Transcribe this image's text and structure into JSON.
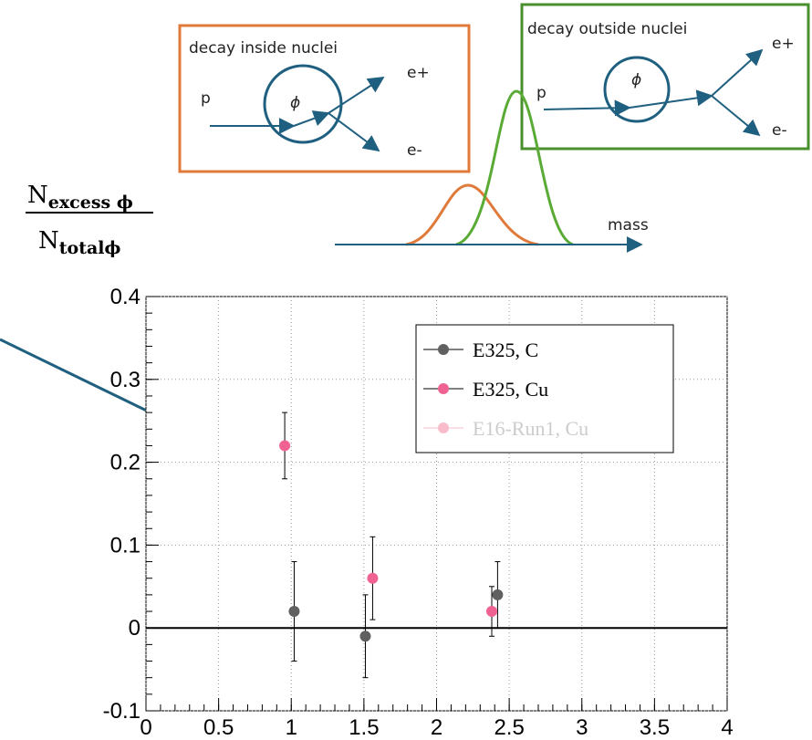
{
  "chart_data": {
    "type": "scatter",
    "xlim": [
      0,
      4
    ],
    "xticks": [
      0,
      0.5,
      1,
      1.5,
      2,
      2.5,
      3,
      3.5,
      4
    ],
    "ylim": [
      -0.1,
      0.4
    ],
    "yticks": [
      -0.1,
      0,
      0.1,
      0.2,
      0.3,
      0.4
    ],
    "grid": true,
    "legend": "upper right",
    "series": [
      {
        "name": "E325, C",
        "color": "#606060",
        "x": [
          1.02,
          1.51,
          2.42
        ],
        "values": [
          0.02,
          -0.01,
          0.04
        ],
        "errors": [
          0.06,
          0.05,
          0.04
        ]
      },
      {
        "name": "E325, Cu",
        "color": "#f06292",
        "x": [
          0.955,
          1.56,
          2.38
        ],
        "values": [
          0.22,
          0.06,
          0.02
        ],
        "errors": [
          0.04,
          0.05,
          0.03
        ]
      },
      {
        "name": "E16-Run1, Cu",
        "color": "#f8bccb",
        "x": [],
        "values": [],
        "errors": []
      }
    ]
  },
  "ylabel": {
    "numerator": {
      "base": "N",
      "sub": "excess ϕ"
    },
    "denominator": {
      "base": "N",
      "sub": "totalϕ"
    }
  },
  "diagram": {
    "inside": {
      "title": "decay inside nuclei",
      "p": "p",
      "phi": "ϕ",
      "eplus": "e+",
      "eminus": "e-"
    },
    "outside": {
      "title": "decay outside nuclei",
      "p": "p",
      "phi": "ϕ",
      "eplus": "e+",
      "eminus": "e-"
    },
    "mass": "mass"
  }
}
